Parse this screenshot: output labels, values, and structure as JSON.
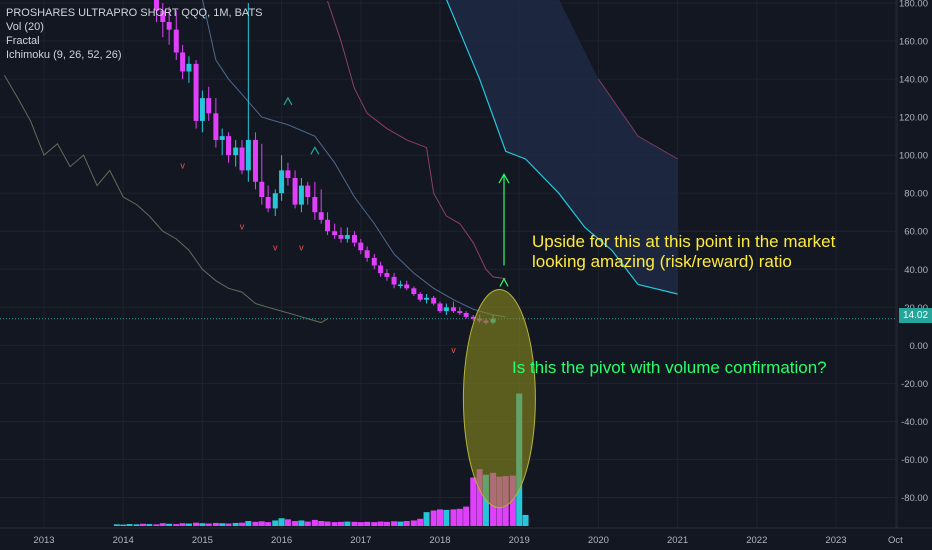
{
  "legend": {
    "symbol_line": "PROSHARES ULTRAPRO SHORT QQQ, 1M, BATS",
    "vol": "Vol (20)",
    "fractal": "Fractal",
    "ichimoku": "Ichimoku (9, 26, 52, 26)"
  },
  "annotations": {
    "upside_line1": "Upside for this at this point in the market",
    "upside_line2": "looking amazing (risk/reward) ratio",
    "pivot_question": "Is this the pivot with volume confirmation?"
  },
  "last_price_label": "14.02",
  "colors": {
    "background": "#131722",
    "bull_candle": "#26c6da",
    "bear_candle": "#e040fb",
    "annotation_yellow": "#ffeb3b",
    "annotation_green": "#26ff6a",
    "ellipse_fill": "#8c8c1e",
    "cloud": "#1e2a44"
  },
  "chart_data": {
    "type": "candlestick",
    "title": "PROSHARES ULTRAPRO SHORT QQQ, 1M, BATS",
    "ylim": [
      -98,
      182
    ],
    "y_ticks": [
      "180.00",
      "160.00",
      "140.00",
      "120.00",
      "100.00",
      "80.00",
      "60.00",
      "40.00",
      "20.00",
      "0.00",
      "-20.00",
      "-40.00",
      "-60.00",
      "-80.00"
    ],
    "y_tick_values": [
      180,
      160,
      140,
      120,
      100,
      80,
      60,
      40,
      20,
      0,
      -20,
      -40,
      -60,
      -80
    ],
    "x_ticks": [
      "2013",
      "2014",
      "2015",
      "2016",
      "2017",
      "2018",
      "2019",
      "2020",
      "2021",
      "2022",
      "2023",
      "Oct"
    ],
    "x_tick_values": [
      2013,
      2014,
      2015,
      2016,
      2017,
      2018,
      2019,
      2020,
      2021,
      2022,
      2023,
      2023.75
    ],
    "last_price": 14.02,
    "candles": [
      {
        "t": 2014.42,
        "o": 182,
        "h": 185,
        "l": 170,
        "c": 176
      },
      {
        "t": 2014.5,
        "o": 176,
        "h": 180,
        "l": 162,
        "c": 170
      },
      {
        "t": 2014.58,
        "o": 170,
        "h": 178,
        "l": 158,
        "c": 166
      },
      {
        "t": 2014.67,
        "o": 166,
        "h": 176,
        "l": 150,
        "c": 154
      },
      {
        "t": 2014.75,
        "o": 154,
        "h": 158,
        "l": 140,
        "c": 144
      },
      {
        "t": 2014.83,
        "o": 144,
        "h": 152,
        "l": 138,
        "c": 148
      },
      {
        "t": 2014.92,
        "o": 148,
        "h": 150,
        "l": 114,
        "c": 118
      },
      {
        "t": 2015.0,
        "o": 118,
        "h": 134,
        "l": 112,
        "c": 130
      },
      {
        "t": 2015.08,
        "o": 130,
        "h": 136,
        "l": 118,
        "c": 122
      },
      {
        "t": 2015.17,
        "o": 122,
        "h": 130,
        "l": 104,
        "c": 108
      },
      {
        "t": 2015.25,
        "o": 108,
        "h": 114,
        "l": 100,
        "c": 110
      },
      {
        "t": 2015.33,
        "o": 110,
        "h": 112,
        "l": 96,
        "c": 100
      },
      {
        "t": 2015.42,
        "o": 100,
        "h": 108,
        "l": 94,
        "c": 104
      },
      {
        "t": 2015.5,
        "o": 104,
        "h": 108,
        "l": 90,
        "c": 92
      },
      {
        "t": 2015.58,
        "o": 92,
        "h": 180,
        "l": 86,
        "c": 108
      },
      {
        "t": 2015.67,
        "o": 108,
        "h": 112,
        "l": 82,
        "c": 86
      },
      {
        "t": 2015.75,
        "o": 86,
        "h": 106,
        "l": 74,
        "c": 78
      },
      {
        "t": 2015.83,
        "o": 78,
        "h": 84,
        "l": 70,
        "c": 72
      },
      {
        "t": 2015.92,
        "o": 72,
        "h": 82,
        "l": 68,
        "c": 80
      },
      {
        "t": 2016.0,
        "o": 80,
        "h": 100,
        "l": 76,
        "c": 92
      },
      {
        "t": 2016.08,
        "o": 92,
        "h": 96,
        "l": 84,
        "c": 88
      },
      {
        "t": 2016.17,
        "o": 88,
        "h": 92,
        "l": 72,
        "c": 74
      },
      {
        "t": 2016.25,
        "o": 74,
        "h": 88,
        "l": 70,
        "c": 84
      },
      {
        "t": 2016.33,
        "o": 84,
        "h": 86,
        "l": 74,
        "c": 78
      },
      {
        "t": 2016.42,
        "o": 78,
        "h": 86,
        "l": 66,
        "c": 70
      },
      {
        "t": 2016.5,
        "o": 70,
        "h": 82,
        "l": 64,
        "c": 66
      },
      {
        "t": 2016.58,
        "o": 66,
        "h": 70,
        "l": 58,
        "c": 60
      },
      {
        "t": 2016.67,
        "o": 60,
        "h": 64,
        "l": 56,
        "c": 58
      },
      {
        "t": 2016.75,
        "o": 58,
        "h": 62,
        "l": 54,
        "c": 56
      },
      {
        "t": 2016.83,
        "o": 56,
        "h": 62,
        "l": 54,
        "c": 58
      },
      {
        "t": 2016.92,
        "o": 58,
        "h": 60,
        "l": 52,
        "c": 54
      },
      {
        "t": 2017.0,
        "o": 54,
        "h": 56,
        "l": 48,
        "c": 50
      },
      {
        "t": 2017.08,
        "o": 50,
        "h": 52,
        "l": 44,
        "c": 46
      },
      {
        "t": 2017.17,
        "o": 46,
        "h": 48,
        "l": 40,
        "c": 42
      },
      {
        "t": 2017.25,
        "o": 42,
        "h": 44,
        "l": 36,
        "c": 38
      },
      {
        "t": 2017.33,
        "o": 38,
        "h": 40,
        "l": 34,
        "c": 36
      },
      {
        "t": 2017.42,
        "o": 36,
        "h": 38,
        "l": 30,
        "c": 32
      },
      {
        "t": 2017.5,
        "o": 32,
        "h": 34,
        "l": 30,
        "c": 32
      },
      {
        "t": 2017.58,
        "o": 32,
        "h": 34,
        "l": 29,
        "c": 30
      },
      {
        "t": 2017.67,
        "o": 30,
        "h": 31,
        "l": 26,
        "c": 27
      },
      {
        "t": 2017.75,
        "o": 27,
        "h": 28,
        "l": 23,
        "c": 24
      },
      {
        "t": 2017.83,
        "o": 24,
        "h": 27,
        "l": 22,
        "c": 25
      },
      {
        "t": 2017.92,
        "o": 25,
        "h": 26,
        "l": 21,
        "c": 22
      },
      {
        "t": 2018.0,
        "o": 22,
        "h": 23,
        "l": 17,
        "c": 18
      },
      {
        "t": 2018.08,
        "o": 18,
        "h": 22,
        "l": 16,
        "c": 20
      },
      {
        "t": 2018.17,
        "o": 20,
        "h": 23,
        "l": 17,
        "c": 18
      },
      {
        "t": 2018.25,
        "o": 18,
        "h": 20,
        "l": 16,
        "c": 17
      },
      {
        "t": 2018.33,
        "o": 17,
        "h": 18,
        "l": 14,
        "c": 15
      },
      {
        "t": 2018.42,
        "o": 15,
        "h": 16,
        "l": 13,
        "c": 14
      },
      {
        "t": 2018.5,
        "o": 14,
        "h": 16,
        "l": 12,
        "c": 13
      },
      {
        "t": 2018.58,
        "o": 13,
        "h": 14,
        "l": 11,
        "c": 12
      },
      {
        "t": 2018.67,
        "o": 12,
        "h": 16,
        "l": 11,
        "c": 14.02
      }
    ],
    "volume_max": 480,
    "volume": [
      {
        "t": 2013.92,
        "v": 6,
        "dir": "up"
      },
      {
        "t": 2014.0,
        "v": 5,
        "dir": "up"
      },
      {
        "t": 2014.08,
        "v": 7,
        "dir": "up"
      },
      {
        "t": 2014.17,
        "v": 6,
        "dir": "up"
      },
      {
        "t": 2014.25,
        "v": 8,
        "dir": "down"
      },
      {
        "t": 2014.33,
        "v": 7,
        "dir": "up"
      },
      {
        "t": 2014.42,
        "v": 6,
        "dir": "down"
      },
      {
        "t": 2014.5,
        "v": 10,
        "dir": "down"
      },
      {
        "t": 2014.58,
        "v": 8,
        "dir": "up"
      },
      {
        "t": 2014.67,
        "v": 7,
        "dir": "down"
      },
      {
        "t": 2014.75,
        "v": 10,
        "dir": "down"
      },
      {
        "t": 2014.83,
        "v": 9,
        "dir": "up"
      },
      {
        "t": 2014.92,
        "v": 12,
        "dir": "down"
      },
      {
        "t": 2015.0,
        "v": 10,
        "dir": "up"
      },
      {
        "t": 2015.08,
        "v": 9,
        "dir": "down"
      },
      {
        "t": 2015.17,
        "v": 11,
        "dir": "down"
      },
      {
        "t": 2015.25,
        "v": 10,
        "dir": "up"
      },
      {
        "t": 2015.33,
        "v": 9,
        "dir": "down"
      },
      {
        "t": 2015.42,
        "v": 11,
        "dir": "up"
      },
      {
        "t": 2015.5,
        "v": 12,
        "dir": "down"
      },
      {
        "t": 2015.58,
        "v": 18,
        "dir": "up"
      },
      {
        "t": 2015.67,
        "v": 15,
        "dir": "down"
      },
      {
        "t": 2015.75,
        "v": 17,
        "dir": "down"
      },
      {
        "t": 2015.83,
        "v": 14,
        "dir": "down"
      },
      {
        "t": 2015.92,
        "v": 20,
        "dir": "up"
      },
      {
        "t": 2016.0,
        "v": 28,
        "dir": "up"
      },
      {
        "t": 2016.08,
        "v": 24,
        "dir": "down"
      },
      {
        "t": 2016.17,
        "v": 18,
        "dir": "down"
      },
      {
        "t": 2016.25,
        "v": 20,
        "dir": "up"
      },
      {
        "t": 2016.33,
        "v": 16,
        "dir": "down"
      },
      {
        "t": 2016.42,
        "v": 22,
        "dir": "down"
      },
      {
        "t": 2016.5,
        "v": 18,
        "dir": "down"
      },
      {
        "t": 2016.58,
        "v": 16,
        "dir": "down"
      },
      {
        "t": 2016.67,
        "v": 14,
        "dir": "down"
      },
      {
        "t": 2016.75,
        "v": 15,
        "dir": "down"
      },
      {
        "t": 2016.83,
        "v": 16,
        "dir": "up"
      },
      {
        "t": 2016.92,
        "v": 15,
        "dir": "down"
      },
      {
        "t": 2017.0,
        "v": 14,
        "dir": "down"
      },
      {
        "t": 2017.08,
        "v": 15,
        "dir": "down"
      },
      {
        "t": 2017.17,
        "v": 14,
        "dir": "down"
      },
      {
        "t": 2017.25,
        "v": 16,
        "dir": "down"
      },
      {
        "t": 2017.33,
        "v": 15,
        "dir": "down"
      },
      {
        "t": 2017.42,
        "v": 17,
        "dir": "down"
      },
      {
        "t": 2017.5,
        "v": 16,
        "dir": "up"
      },
      {
        "t": 2017.58,
        "v": 18,
        "dir": "down"
      },
      {
        "t": 2017.67,
        "v": 20,
        "dir": "down"
      },
      {
        "t": 2017.75,
        "v": 26,
        "dir": "down"
      },
      {
        "t": 2017.83,
        "v": 50,
        "dir": "up"
      },
      {
        "t": 2017.92,
        "v": 56,
        "dir": "down"
      },
      {
        "t": 2018.0,
        "v": 60,
        "dir": "down"
      },
      {
        "t": 2018.08,
        "v": 58,
        "dir": "up"
      },
      {
        "t": 2018.17,
        "v": 60,
        "dir": "down"
      },
      {
        "t": 2018.25,
        "v": 62,
        "dir": "down"
      },
      {
        "t": 2018.33,
        "v": 70,
        "dir": "down"
      },
      {
        "t": 2018.42,
        "v": 175,
        "dir": "down"
      },
      {
        "t": 2018.5,
        "v": 205,
        "dir": "down"
      },
      {
        "t": 2018.58,
        "v": 185,
        "dir": "up"
      },
      {
        "t": 2018.67,
        "v": 192,
        "dir": "down"
      },
      {
        "t": 2018.75,
        "v": 178,
        "dir": "down"
      },
      {
        "t": 2018.83,
        "v": 180,
        "dir": "down"
      },
      {
        "t": 2018.92,
        "v": 182,
        "dir": "down"
      },
      {
        "t": 2019.0,
        "v": 478,
        "dir": "up"
      },
      {
        "t": 2019.08,
        "v": 40,
        "dir": "up"
      }
    ],
    "span_a": [
      {
        "t": 2016.58,
        "y": 181
      },
      {
        "t": 2016.75,
        "y": 160
      },
      {
        "t": 2016.92,
        "y": 135
      },
      {
        "t": 2017.08,
        "y": 122
      },
      {
        "t": 2017.33,
        "y": 114
      },
      {
        "t": 2017.58,
        "y": 108
      },
      {
        "t": 2017.83,
        "y": 104
      },
      {
        "t": 2017.92,
        "y": 80
      },
      {
        "t": 2018.08,
        "y": 68
      },
      {
        "t": 2018.25,
        "y": 64
      },
      {
        "t": 2018.42,
        "y": 54
      },
      {
        "t": 2018.58,
        "y": 40
      },
      {
        "t": 2018.67,
        "y": 36
      },
      {
        "t": 2018.83,
        "y": 35
      }
    ],
    "span_b_cloud_upper": [
      {
        "t": 2018.08,
        "y": 182
      },
      {
        "t": 2018.5,
        "y": 182
      },
      {
        "t": 2019.0,
        "y": 182
      },
      {
        "t": 2019.5,
        "y": 182
      },
      {
        "t": 2020.0,
        "y": 140
      },
      {
        "t": 2020.5,
        "y": 110
      },
      {
        "t": 2021.0,
        "y": 98
      }
    ],
    "span_b_cloud_lower": [
      {
        "t": 2018.08,
        "y": 182
      },
      {
        "t": 2018.5,
        "y": 140
      },
      {
        "t": 2018.83,
        "y": 102
      },
      {
        "t": 2019.08,
        "y": 98
      },
      {
        "t": 2019.5,
        "y": 80
      },
      {
        "t": 2019.83,
        "y": 62
      },
      {
        "t": 2020.17,
        "y": 50
      },
      {
        "t": 2020.5,
        "y": 32
      },
      {
        "t": 2021.0,
        "y": 27
      }
    ],
    "base_line": [
      {
        "t": 2015.0,
        "y": 182
      },
      {
        "t": 2015.17,
        "y": 150
      },
      {
        "t": 2015.33,
        "y": 140
      },
      {
        "t": 2015.5,
        "y": 132
      },
      {
        "t": 2015.75,
        "y": 120
      },
      {
        "t": 2016.08,
        "y": 116
      },
      {
        "t": 2016.42,
        "y": 110
      },
      {
        "t": 2016.67,
        "y": 96
      },
      {
        "t": 2016.92,
        "y": 78
      },
      {
        "t": 2017.17,
        "y": 64
      },
      {
        "t": 2017.42,
        "y": 48
      },
      {
        "t": 2017.67,
        "y": 38
      },
      {
        "t": 2017.92,
        "y": 30
      },
      {
        "t": 2018.17,
        "y": 24
      },
      {
        "t": 2018.42,
        "y": 19
      },
      {
        "t": 2018.67,
        "y": 16
      },
      {
        "t": 2018.83,
        "y": 15
      }
    ],
    "lagging_span": [
      {
        "t": 2012.5,
        "y": 142
      },
      {
        "t": 2012.67,
        "y": 130
      },
      {
        "t": 2012.83,
        "y": 118
      },
      {
        "t": 2013.0,
        "y": 100
      },
      {
        "t": 2013.17,
        "y": 106
      },
      {
        "t": 2013.33,
        "y": 94
      },
      {
        "t": 2013.5,
        "y": 100
      },
      {
        "t": 2013.67,
        "y": 84
      },
      {
        "t": 2013.83,
        "y": 92
      },
      {
        "t": 2014.0,
        "y": 78
      },
      {
        "t": 2014.17,
        "y": 74
      },
      {
        "t": 2014.33,
        "y": 68
      },
      {
        "t": 2014.5,
        "y": 60
      },
      {
        "t": 2014.67,
        "y": 56
      },
      {
        "t": 2014.83,
        "y": 50
      },
      {
        "t": 2015.0,
        "y": 40
      },
      {
        "t": 2015.17,
        "y": 34
      },
      {
        "t": 2015.33,
        "y": 30
      },
      {
        "t": 2015.5,
        "y": 28
      },
      {
        "t": 2015.67,
        "y": 22
      },
      {
        "t": 2015.83,
        "y": 20
      },
      {
        "t": 2016.0,
        "y": 18
      },
      {
        "t": 2016.17,
        "y": 16
      },
      {
        "t": 2016.33,
        "y": 14
      },
      {
        "t": 2016.5,
        "y": 12
      },
      {
        "t": 2016.58,
        "y": 14
      }
    ],
    "fractals_down": [
      {
        "t": 2014.75,
        "y": 93
      },
      {
        "t": 2015.5,
        "y": 61
      },
      {
        "t": 2015.92,
        "y": 50
      },
      {
        "t": 2016.25,
        "y": 50
      },
      {
        "t": 2018.17,
        "y": -4
      }
    ],
    "fractals_up": [
      {
        "t": 2016.08,
        "y": 128
      },
      {
        "t": 2016.42,
        "y": 102
      }
    ],
    "arrow_target_y": 90,
    "arrow_base_y": 42,
    "ellipse": {
      "t": 2018.75,
      "y_top": 22,
      "y_bottom": -78
    }
  }
}
